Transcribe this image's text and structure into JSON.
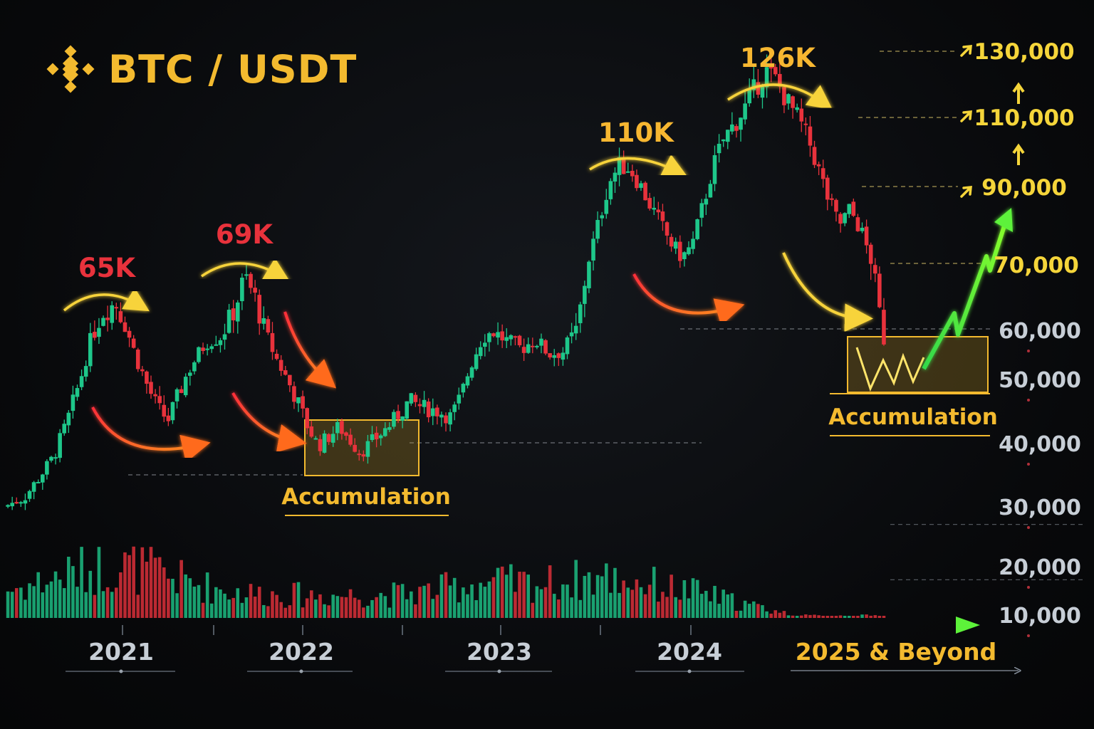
{
  "header": {
    "title": "BTC / USDT",
    "logo_icon": "binance-diamond-icon",
    "logo_color": "#f3ba2f"
  },
  "colors": {
    "up": "#1ec78a",
    "down": "#e8323c",
    "accent": "#f3ba2f",
    "projection": "#5df23a",
    "axis_text": "#c7ced6"
  },
  "chart_data": {
    "type": "candlestick",
    "title": "BTC / USDT",
    "x_ticks": [
      "2021",
      "2022",
      "2023",
      "2024",
      "2025 & Beyond"
    ],
    "y_ticks": [
      10000,
      20000,
      30000,
      40000,
      50000,
      60000,
      70000,
      90000,
      110000,
      130000
    ],
    "y_tick_labels": [
      "10,000",
      "20,000",
      "30,000",
      "40,000",
      "50,000",
      "60,000",
      "70,000",
      "90,000",
      "110,000",
      "130,000"
    ],
    "highlighted_targets": [
      "90,000",
      "110,000",
      "130,000"
    ],
    "grid": false,
    "price_path": [
      [
        0,
        30000
      ],
      [
        0.03,
        31500
      ],
      [
        0.05,
        34500
      ],
      [
        0.07,
        37500
      ],
      [
        0.09,
        43000
      ],
      [
        0.11,
        50000
      ],
      [
        0.125,
        58000
      ],
      [
        0.14,
        62500
      ],
      [
        0.16,
        64000
      ],
      [
        0.175,
        60500
      ],
      [
        0.19,
        54000
      ],
      [
        0.205,
        49000
      ],
      [
        0.22,
        45500
      ],
      [
        0.235,
        43500
      ],
      [
        0.25,
        47500
      ],
      [
        0.27,
        53000
      ],
      [
        0.29,
        57500
      ],
      [
        0.31,
        58500
      ],
      [
        0.33,
        63000
      ],
      [
        0.345,
        68000
      ],
      [
        0.36,
        64500
      ],
      [
        0.375,
        59000
      ],
      [
        0.39,
        54000
      ],
      [
        0.405,
        50000
      ],
      [
        0.42,
        46500
      ],
      [
        0.435,
        42500
      ],
      [
        0.45,
        39500
      ],
      [
        0.465,
        41000
      ],
      [
        0.48,
        42500
      ],
      [
        0.495,
        40500
      ],
      [
        0.51,
        38500
      ],
      [
        0.53,
        40500
      ],
      [
        0.55,
        42500
      ],
      [
        0.565,
        44500
      ],
      [
        0.58,
        46500
      ],
      [
        0.6,
        45500
      ],
      [
        0.62,
        45000
      ],
      [
        0.64,
        44000
      ],
      [
        0.655,
        47500
      ],
      [
        0.67,
        53500
      ],
      [
        0.685,
        58500
      ],
      [
        0.7,
        59500
      ],
      [
        0.72,
        57500
      ],
      [
        0.74,
        56000
      ],
      [
        0.76,
        58000
      ],
      [
        0.78,
        55000
      ],
      [
        0.8,
        55500
      ],
      [
        0.82,
        60000
      ],
      [
        0.835,
        70000
      ],
      [
        0.85,
        80000
      ],
      [
        0.865,
        91000
      ],
      [
        0.88,
        96000
      ],
      [
        0.895,
        95500
      ],
      [
        0.91,
        90500
      ],
      [
        0.925,
        85000
      ],
      [
        0.94,
        80000
      ],
      [
        0.955,
        75000
      ],
      [
        0.97,
        71500
      ],
      [
        0.985,
        75000
      ],
      [
        1.0,
        85000
      ],
      [
        1.015,
        96000
      ],
      [
        1.03,
        104000
      ],
      [
        1.045,
        108000
      ],
      [
        1.06,
        113000
      ],
      [
        1.075,
        119000
      ],
      [
        1.09,
        124000
      ],
      [
        1.105,
        121000
      ],
      [
        1.12,
        115000
      ],
      [
        1.135,
        110000
      ],
      [
        1.15,
        104000
      ],
      [
        1.165,
        95000
      ],
      [
        1.18,
        86000
      ],
      [
        1.195,
        80000
      ],
      [
        1.21,
        84000
      ],
      [
        1.225,
        79000
      ],
      [
        1.24,
        71000
      ],
      [
        1.25,
        64000
      ],
      [
        1.26,
        57000
      ]
    ],
    "peaks": [
      {
        "label": "65K",
        "value": 65000,
        "color": "#e8323c"
      },
      {
        "label": "69K",
        "value": 69000,
        "color": "#e8323c"
      },
      {
        "label": "110K",
        "value": 110000,
        "color": "#f7b731"
      },
      {
        "label": "126K",
        "value": 126000,
        "color": "#f7b731"
      }
    ],
    "annotations": [
      {
        "label": "Accumulation",
        "range": [
          38000,
          46000
        ],
        "period": "2022"
      },
      {
        "label": "Accumulation",
        "range": [
          50000,
          58000
        ],
        "period": "2025 & Beyond"
      }
    ],
    "projection": {
      "from": 50000,
      "to": 90000,
      "color": "#5df23a"
    }
  }
}
